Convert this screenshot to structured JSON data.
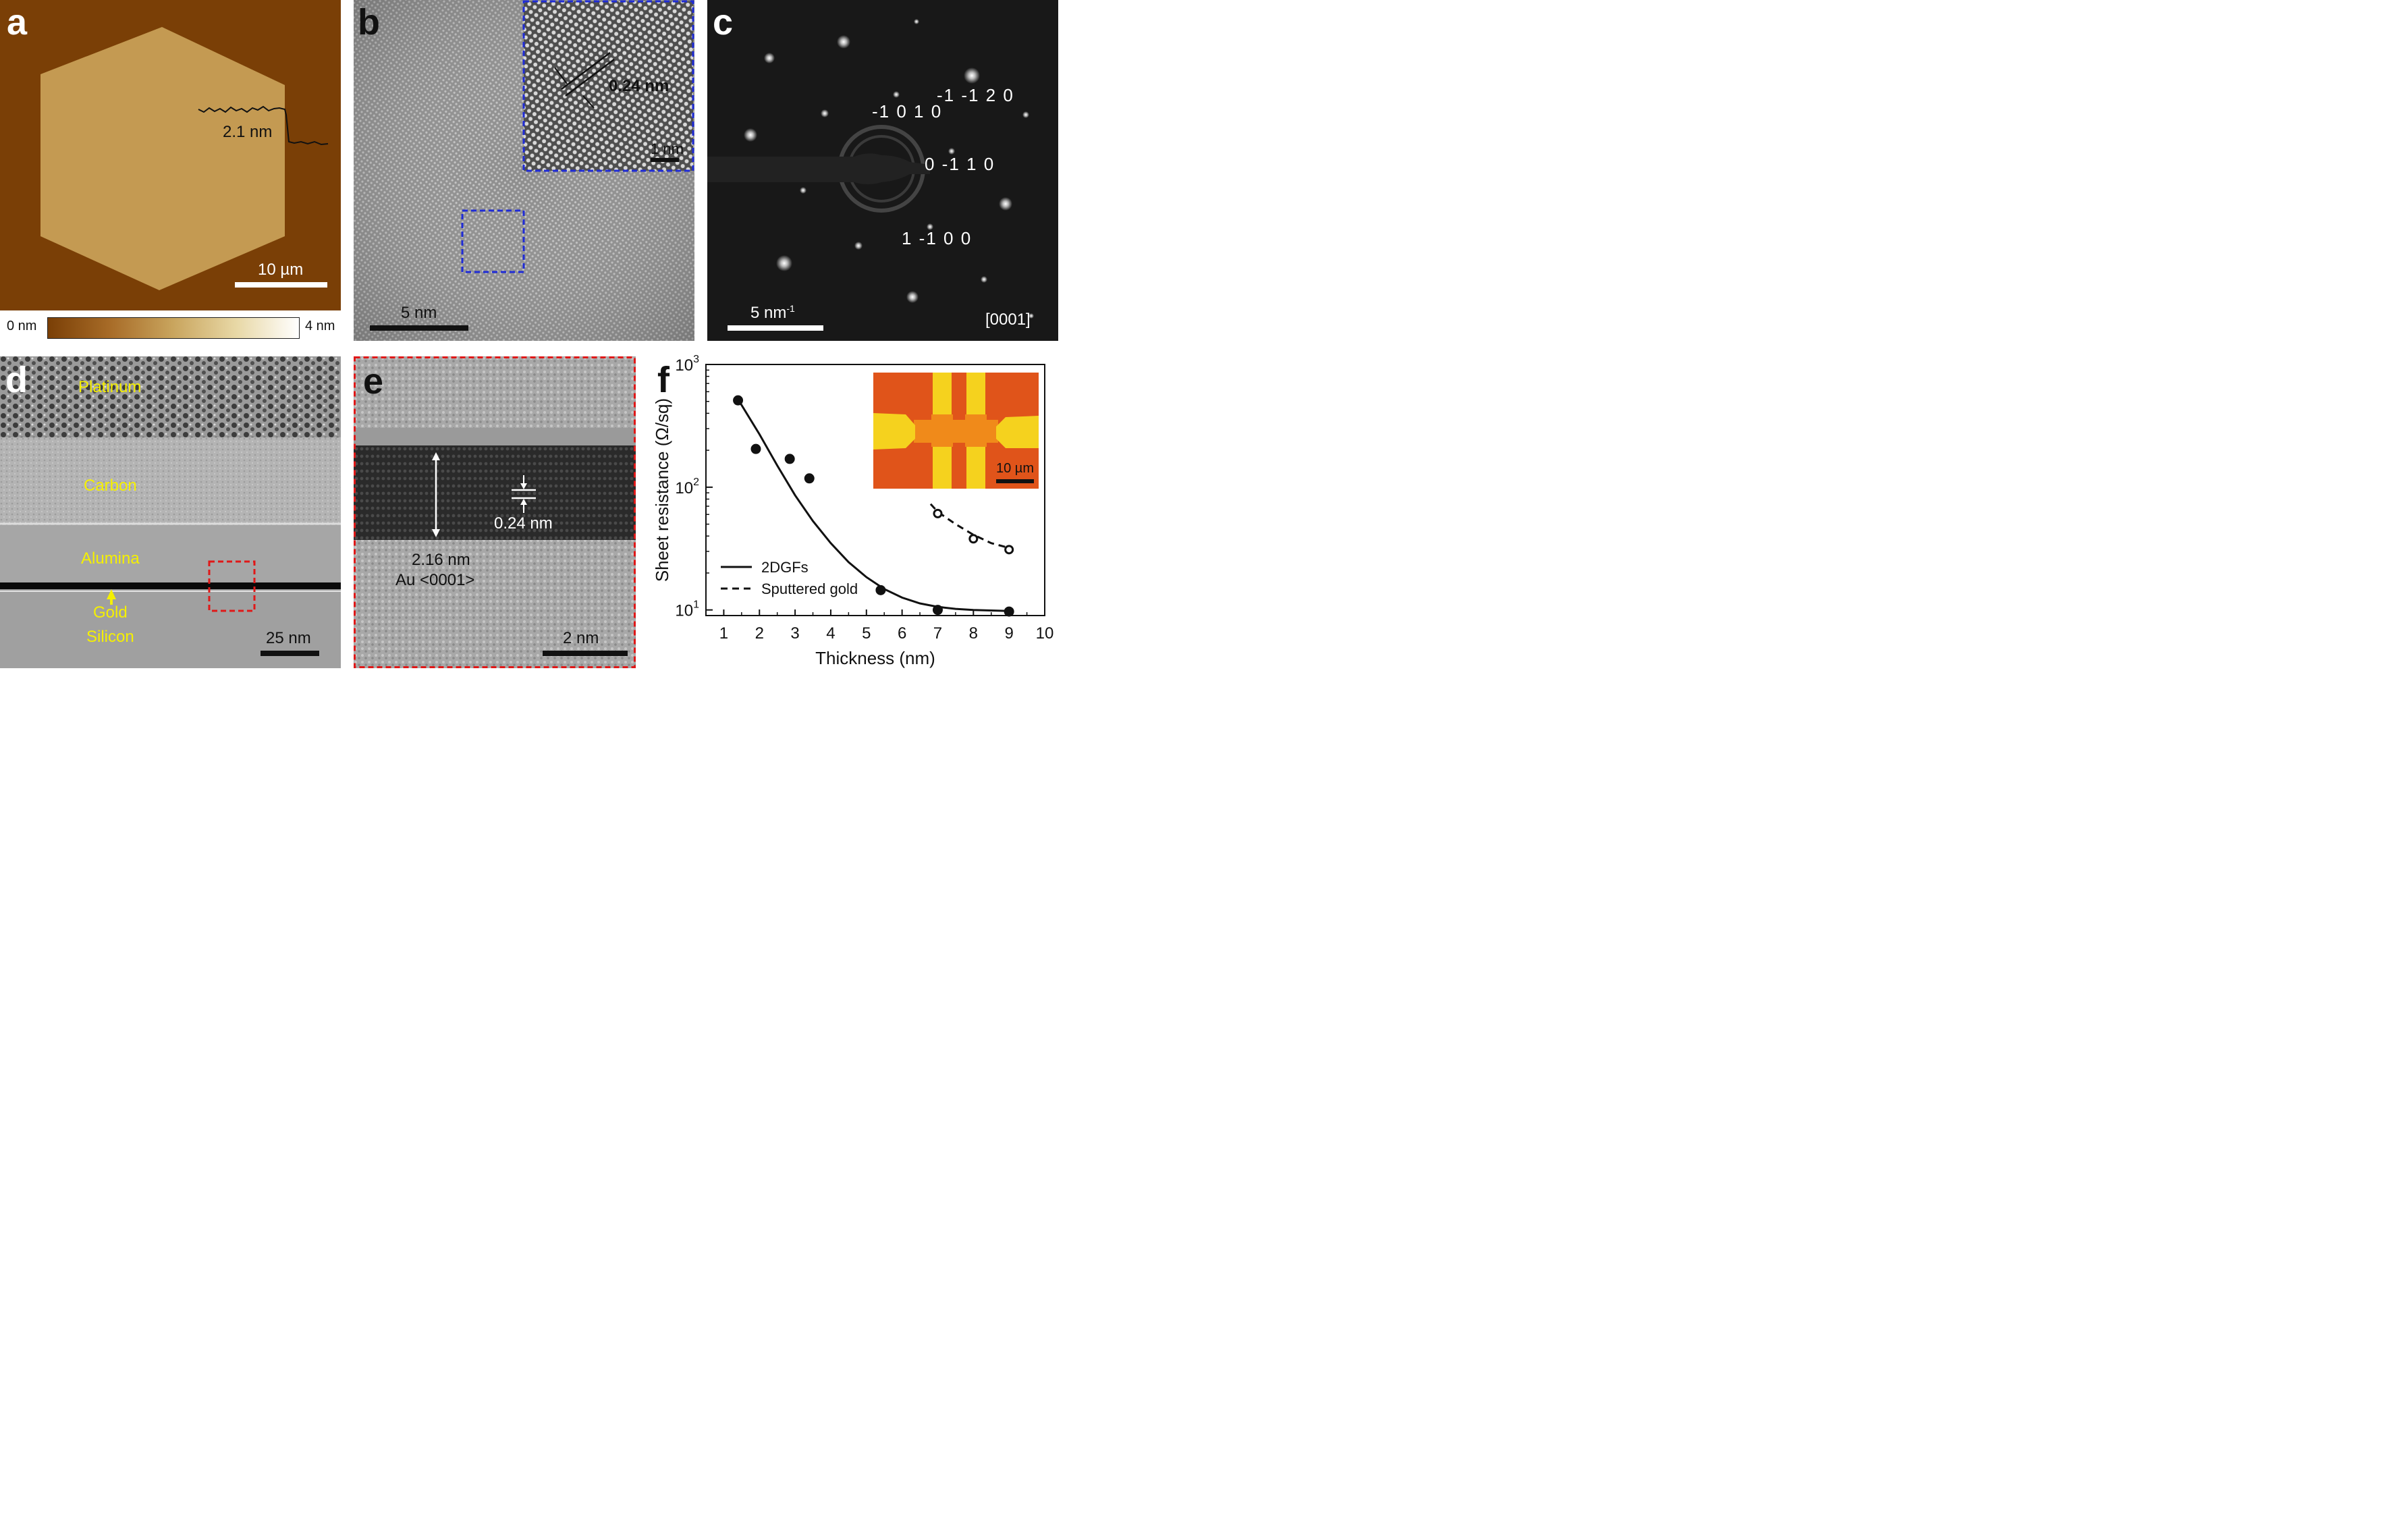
{
  "panel_a": {
    "label": "a",
    "step_label": "2.1 nm",
    "scale_label": "10 µm",
    "colorbar": {
      "min_label": "0 nm",
      "max_label": "4 nm"
    },
    "colors": {
      "background": "#7a3f06",
      "flake": "#c49a52"
    }
  },
  "panel_b": {
    "label": "b",
    "inset_spacing_label": "0.24 nm",
    "inset_scale_label": "1 nm",
    "scale_label": "5 nm",
    "box_color": "#1f2bd6"
  },
  "panel_c": {
    "label": "c",
    "indices": [
      "-1 -1 2 0",
      "-1 0 1 0",
      "0 -1 1 0",
      "1 -1 0 0"
    ],
    "scale_label": "5 nm",
    "scale_label_sup": "-1",
    "zone_axis": "[0001]"
  },
  "panel_d": {
    "label": "d",
    "layers": [
      "Platinum",
      "Carbon",
      "Alumina",
      "Gold",
      "Silicon"
    ],
    "scale_label": "25 nm",
    "label_color": "#f5f000",
    "box_color": "#e01818"
  },
  "panel_e": {
    "label": "e",
    "spacing_label": "0.24 nm",
    "thickness_label": "2.16 nm",
    "orientation_label": "Au <0001>",
    "scale_label": "2 nm",
    "border_color": "#e01818"
  },
  "panel_f": {
    "label": "f",
    "inset_scale_label": "10 µm"
  },
  "chart_data": {
    "type": "scatter",
    "xlabel": "Thickness (nm)",
    "ylabel": "Sheet resistance (Ω/sq)",
    "xlim": [
      0.5,
      10
    ],
    "ylim": [
      9,
      1000
    ],
    "yscale": "log",
    "x_ticks": [
      1,
      2,
      3,
      4,
      5,
      6,
      7,
      8,
      9,
      10
    ],
    "y_ticks": [
      {
        "value": 10,
        "base": "10",
        "exp": "1"
      },
      {
        "value": 100,
        "base": "10",
        "exp": "2"
      },
      {
        "value": 1000,
        "base": "10",
        "exp": "3"
      }
    ],
    "legend_position": "bottom-left",
    "series": [
      {
        "name": "2DGFs",
        "marker": "filled-circle",
        "line": "solid",
        "points": [
          [
            1.4,
            510
          ],
          [
            1.9,
            205
          ],
          [
            2.85,
            170
          ],
          [
            3.4,
            118
          ],
          [
            5.4,
            14.5
          ],
          [
            7.0,
            10.0
          ],
          [
            9.0,
            9.7
          ]
        ],
        "fit": [
          [
            1.4,
            520
          ],
          [
            2.0,
            270
          ],
          [
            2.5,
            150
          ],
          [
            3.0,
            86
          ],
          [
            3.5,
            53
          ],
          [
            4.0,
            35
          ],
          [
            4.5,
            24.5
          ],
          [
            5.0,
            18.5
          ],
          [
            5.5,
            14.8
          ],
          [
            6.0,
            12.6
          ],
          [
            6.5,
            11.3
          ],
          [
            7.0,
            10.6
          ],
          [
            7.5,
            10.2
          ],
          [
            8.0,
            10.0
          ],
          [
            9.0,
            9.8
          ]
        ]
      },
      {
        "name": "Sputtered gold",
        "marker": "open-circle",
        "line": "dashed",
        "points": [
          [
            7.0,
            61
          ],
          [
            8.0,
            38
          ],
          [
            9.0,
            31
          ]
        ],
        "fit": [
          [
            6.8,
            73
          ],
          [
            7.0,
            63
          ],
          [
            7.5,
            50
          ],
          [
            8.0,
            41
          ],
          [
            8.5,
            35
          ],
          [
            9.0,
            32
          ]
        ]
      }
    ]
  }
}
